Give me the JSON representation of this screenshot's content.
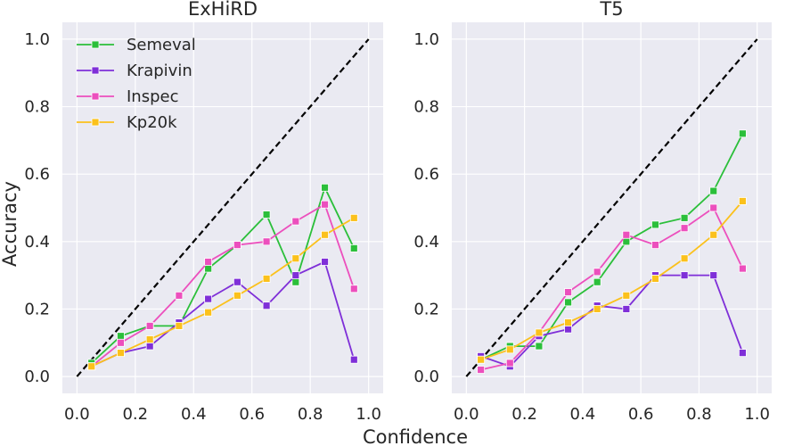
{
  "figure": {
    "xlabel": "Confidence",
    "ylabel": "Accuracy"
  },
  "colors": {
    "panel_bg": "#eaeaf2",
    "grid": "#ffffff",
    "diagonal": "#000000",
    "Semeval": "#2bbf3a",
    "Krapivin": "#7f2fd8",
    "Inspec": "#ec4fbd",
    "Kp20k": "#fbc11c"
  },
  "chart_data": [
    {
      "type": "line",
      "title": "ExHiRD",
      "xlabel": "Confidence",
      "ylabel": "Accuracy",
      "xlim": [
        -0.05,
        1.05
      ],
      "ylim": [
        -0.05,
        1.05
      ],
      "x_ticks": [
        "0.0",
        "0.2",
        "0.4",
        "0.6",
        "0.8",
        "1.0"
      ],
      "y_ticks": [
        "0.0",
        "0.2",
        "0.4",
        "0.6",
        "0.8",
        "1.0"
      ],
      "grid": true,
      "legend": "top-left",
      "reference_line": {
        "style": "dashed",
        "x": [
          0,
          1
        ],
        "y": [
          0,
          1
        ]
      },
      "x": [
        0.05,
        0.15,
        0.25,
        0.35,
        0.45,
        0.55,
        0.65,
        0.75,
        0.85,
        0.95
      ],
      "series": [
        {
          "name": "Semeval",
          "values": [
            0.04,
            0.12,
            0.15,
            0.15,
            0.32,
            0.39,
            0.48,
            0.28,
            0.56,
            0.38
          ]
        },
        {
          "name": "Krapivin",
          "values": [
            0.03,
            0.07,
            0.09,
            0.16,
            0.23,
            0.28,
            0.21,
            0.3,
            0.34,
            0.05
          ]
        },
        {
          "name": "Inspec",
          "values": [
            0.03,
            0.1,
            0.15,
            0.24,
            0.34,
            0.39,
            0.4,
            0.46,
            0.51,
            0.26
          ]
        },
        {
          "name": "Kp20k",
          "values": [
            0.03,
            0.07,
            0.11,
            0.15,
            0.19,
            0.24,
            0.29,
            0.35,
            0.42,
            0.47
          ]
        }
      ]
    },
    {
      "type": "line",
      "title": "T5",
      "xlabel": "Confidence",
      "ylabel": "",
      "xlim": [
        -0.05,
        1.05
      ],
      "ylim": [
        -0.05,
        1.05
      ],
      "x_ticks": [
        "0.0",
        "0.2",
        "0.4",
        "0.6",
        "0.8",
        "1.0"
      ],
      "y_ticks": [
        "0.0",
        "0.2",
        "0.4",
        "0.6",
        "0.8",
        "1.0"
      ],
      "grid": true,
      "reference_line": {
        "style": "dashed",
        "x": [
          0,
          1
        ],
        "y": [
          0,
          1
        ]
      },
      "x": [
        0.05,
        0.15,
        0.25,
        0.35,
        0.45,
        0.55,
        0.65,
        0.75,
        0.85,
        0.95
      ],
      "series": [
        {
          "name": "Semeval",
          "values": [
            0.05,
            0.09,
            0.09,
            0.22,
            0.28,
            0.4,
            0.45,
            0.47,
            0.55,
            0.72
          ]
        },
        {
          "name": "Krapivin",
          "values": [
            0.06,
            0.03,
            0.12,
            0.14,
            0.21,
            0.2,
            0.3,
            0.3,
            0.3,
            0.07
          ]
        },
        {
          "name": "Inspec",
          "values": [
            0.02,
            0.04,
            0.13,
            0.25,
            0.31,
            0.42,
            0.39,
            0.44,
            0.5,
            0.32
          ]
        },
        {
          "name": "Kp20k",
          "values": [
            0.05,
            0.08,
            0.13,
            0.16,
            0.2,
            0.24,
            0.29,
            0.35,
            0.42,
            0.52
          ]
        }
      ]
    }
  ]
}
